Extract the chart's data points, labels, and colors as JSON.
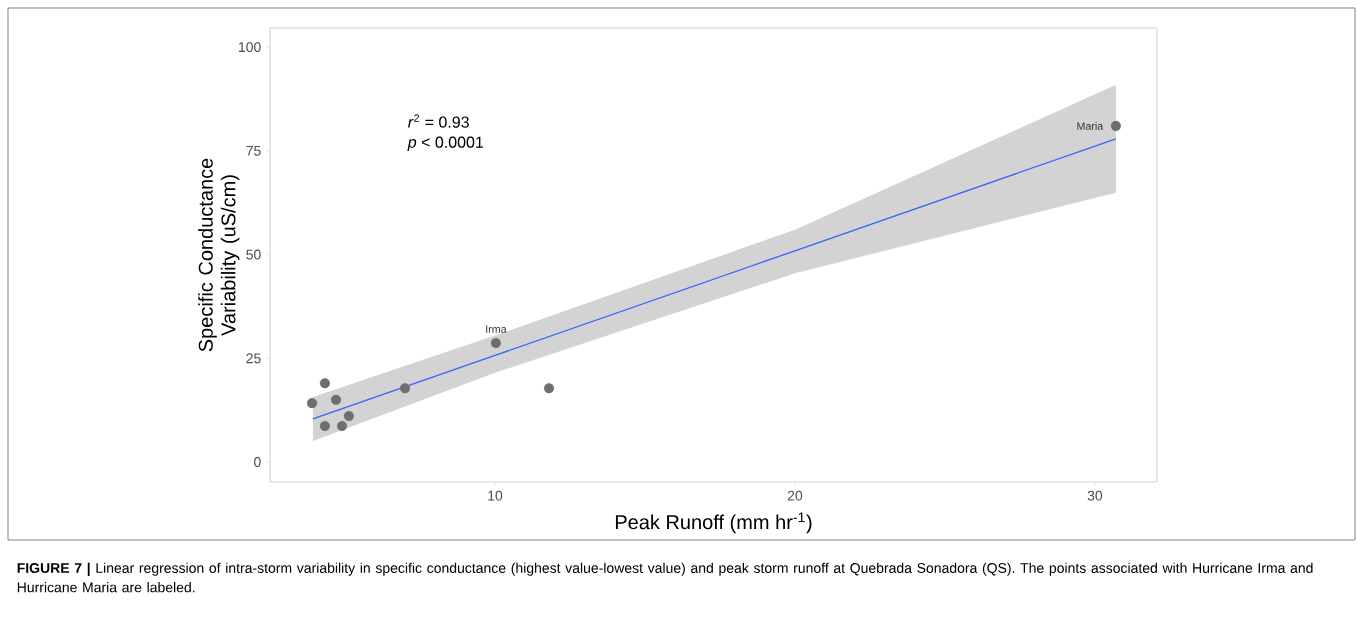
{
  "chart_data": {
    "type": "scatter",
    "xlabel": "Peak Runoff (mm hr$^{-1}$)",
    "ylabel": "Specific Conductance Variability (uS/cm)",
    "xlim": [
      2.5,
      32.07
    ],
    "ylim": [
      -4.8,
      104.6
    ],
    "xticks": [
      10,
      20,
      30
    ],
    "yticks": [
      0,
      25,
      50,
      75,
      100
    ],
    "series": [
      {
        "marker": "circle",
        "color": "#6e6e6e",
        "x": [
          3.9,
          4.33,
          4.33,
          4.7,
          4.9,
          5.13,
          7.0,
          10.03,
          11.8,
          30.7
        ],
        "values": [
          14.2,
          19.0,
          8.7,
          15.0,
          8.7,
          11.1,
          17.8,
          28.7,
          17.8,
          81.0
        ]
      },
      {
        "type": "line",
        "marker": "none",
        "color": "#3366ff",
        "line_style": "solid",
        "x": [
          3.93,
          10,
          20,
          30.7
        ],
        "values": [
          10.4,
          25.7,
          50.9,
          77.9
        ],
        "lower": [
          5.1,
          21.5,
          45.5,
          64.9
        ],
        "upper": [
          15.7,
          30.5,
          56.0,
          90.9
        ]
      }
    ],
    "annotations": [
      {
        "text": "Irma",
        "x": 10.03,
        "y": 28.7
      },
      {
        "text": "Maria",
        "x": 30.7,
        "y": 81.0
      },
      "*r*$^{2}$ = 0.93",
      "*p* < 0.0001",
      "**FIGURE 7 |** Linear regression of intra-storm variability in specific conductance (highest value-lowest value) and peak storm runoff at Quebrada Sonadora (QS). The points associated with Hurricane Irma and Hurricane Maria are labeled."
    ]
  }
}
